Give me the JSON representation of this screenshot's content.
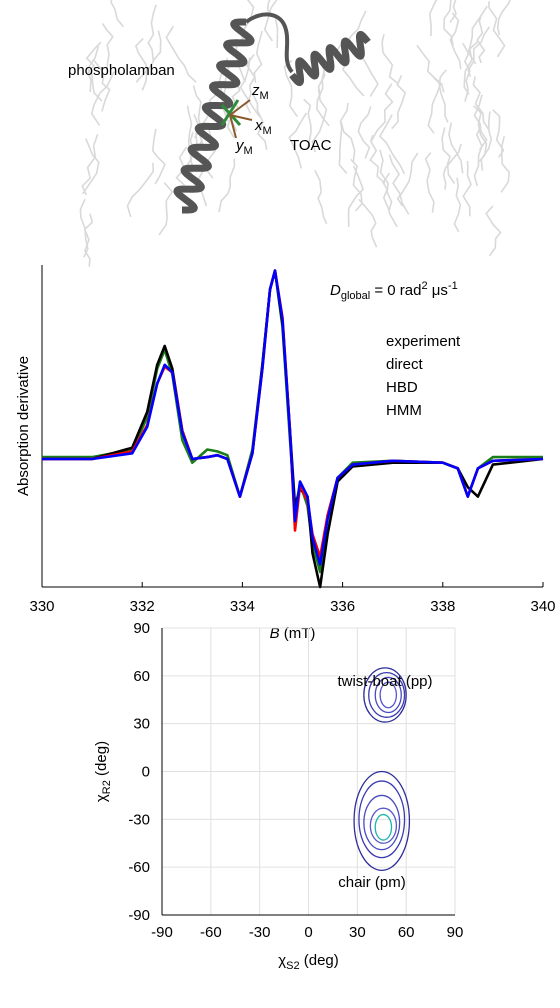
{
  "figure": {
    "protein": "phospholamban",
    "label": "TOAC",
    "frame": [
      {
        "letter": "z",
        "sub": "M"
      },
      {
        "letter": "x",
        "sub": "M"
      },
      {
        "letter": "y",
        "sub": "M"
      }
    ]
  },
  "chart_data": [
    {
      "type": "line",
      "annotation": {
        "var": "D",
        "sub": "global",
        "text": " = 0 rad",
        "sup": "2",
        "unit": " μs",
        "unit_sup": "-1"
      },
      "xlabel": {
        "var": "B",
        "unit": " (mT)"
      },
      "ylabel": "Absorption derivative",
      "xlim": [
        330,
        340
      ],
      "xticks": [
        330,
        332,
        334,
        336,
        338,
        340
      ],
      "ylim": [
        -0.68,
        1.03
      ],
      "x": [
        330,
        331,
        331.8,
        332.1,
        332.3,
        332.45,
        332.6,
        332.8,
        333,
        333.3,
        333.5,
        333.7,
        333.95,
        334.2,
        334.4,
        334.55,
        334.65,
        334.8,
        334.95,
        335.05,
        335.15,
        335.3,
        335.4,
        335.55,
        335.7,
        335.9,
        336.2,
        337,
        338,
        338.3,
        338.5,
        338.7,
        339,
        340
      ],
      "series": [
        {
          "name": "experiment",
          "color": "#1a7f1a",
          "values": [
            0.01,
            0.01,
            0.05,
            0.22,
            0.48,
            0.58,
            0.45,
            0.1,
            -0.02,
            0.05,
            0.04,
            0.02,
            -0.2,
            0.05,
            0.5,
            0.9,
            1.0,
            0.7,
            0.1,
            -0.28,
            -0.13,
            -0.25,
            -0.45,
            -0.6,
            -0.3,
            -0.1,
            -0.02,
            -0.01,
            -0.02,
            -0.05,
            -0.2,
            -0.05,
            0.01,
            0.01
          ]
        },
        {
          "name": "direct",
          "color": "#000000",
          "values": [
            0,
            0,
            0.06,
            0.25,
            0.5,
            0.6,
            0.48,
            0.15,
            0,
            0.01,
            0.02,
            0,
            -0.2,
            0.03,
            0.5,
            0.9,
            1.0,
            0.72,
            0.15,
            -0.25,
            -0.16,
            -0.2,
            -0.5,
            -0.68,
            -0.4,
            -0.12,
            -0.04,
            -0.02,
            -0.02,
            -0.05,
            -0.15,
            -0.2,
            -0.03,
            0
          ]
        },
        {
          "name": "HBD",
          "color": "#ff0000",
          "values": [
            0,
            0,
            0.04,
            0.18,
            0.4,
            0.49,
            0.46,
            0.15,
            0,
            0.01,
            0.02,
            0,
            -0.2,
            0.03,
            0.48,
            0.9,
            1.0,
            0.75,
            0.15,
            -0.38,
            -0.14,
            -0.22,
            -0.4,
            -0.52,
            -0.3,
            -0.1,
            -0.03,
            -0.01,
            -0.02,
            -0.05,
            -0.2,
            -0.05,
            -0.01,
            0
          ]
        },
        {
          "name": "HMM",
          "color": "#0000ff",
          "values": [
            0,
            0,
            0.03,
            0.17,
            0.4,
            0.5,
            0.46,
            0.14,
            0,
            0.01,
            0.02,
            0,
            -0.2,
            0.03,
            0.48,
            0.9,
            1.0,
            0.74,
            0.14,
            -0.33,
            -0.12,
            -0.2,
            -0.42,
            -0.56,
            -0.32,
            -0.1,
            -0.03,
            -0.01,
            -0.02,
            -0.05,
            -0.2,
            -0.05,
            -0.01,
            0
          ]
        }
      ]
    },
    {
      "type": "contour",
      "xlabel": {
        "var": "χ",
        "sub": "S2",
        "unit": " (deg)"
      },
      "ylabel": {
        "var": "χ",
        "sub": "R2",
        "unit": " (deg)"
      },
      "xlim": [
        -90,
        90
      ],
      "xticks": [
        -90,
        -60,
        -30,
        0,
        30,
        60,
        90
      ],
      "ylim": [
        -90,
        90
      ],
      "yticks": [
        -90,
        -60,
        -30,
        0,
        30,
        60,
        90
      ],
      "grid": true,
      "annotations": [
        "twist-boat (pp)",
        "chair (pm)"
      ],
      "contours": [
        {
          "color": "#2e2e9a",
          "cx": 47,
          "cy": 48,
          "rx": 13,
          "ry": 17
        },
        {
          "color": "#3a3ab0",
          "cx": 48,
          "cy": 48,
          "rx": 11,
          "ry": 14
        },
        {
          "color": "#4a4ac0",
          "cx": 49,
          "cy": 48,
          "rx": 8,
          "ry": 11
        },
        {
          "color": "#5858cc",
          "cx": 49,
          "cy": 48,
          "rx": 5,
          "ry": 8
        },
        {
          "color": "#2e2e9a",
          "cx": 45,
          "cy": -31,
          "rx": 17,
          "ry": 31
        },
        {
          "color": "#3a3ab0",
          "cx": 45,
          "cy": -30,
          "rx": 14,
          "ry": 24
        },
        {
          "color": "#4a4ac0",
          "cx": 45,
          "cy": -32,
          "rx": 11,
          "ry": 17
        },
        {
          "color": "#5858cc",
          "cx": 46,
          "cy": -34,
          "rx": 8,
          "ry": 11
        },
        {
          "color": "#1fb5a8",
          "cx": 46,
          "cy": -35,
          "rx": 5,
          "ry": 8
        }
      ]
    }
  ]
}
